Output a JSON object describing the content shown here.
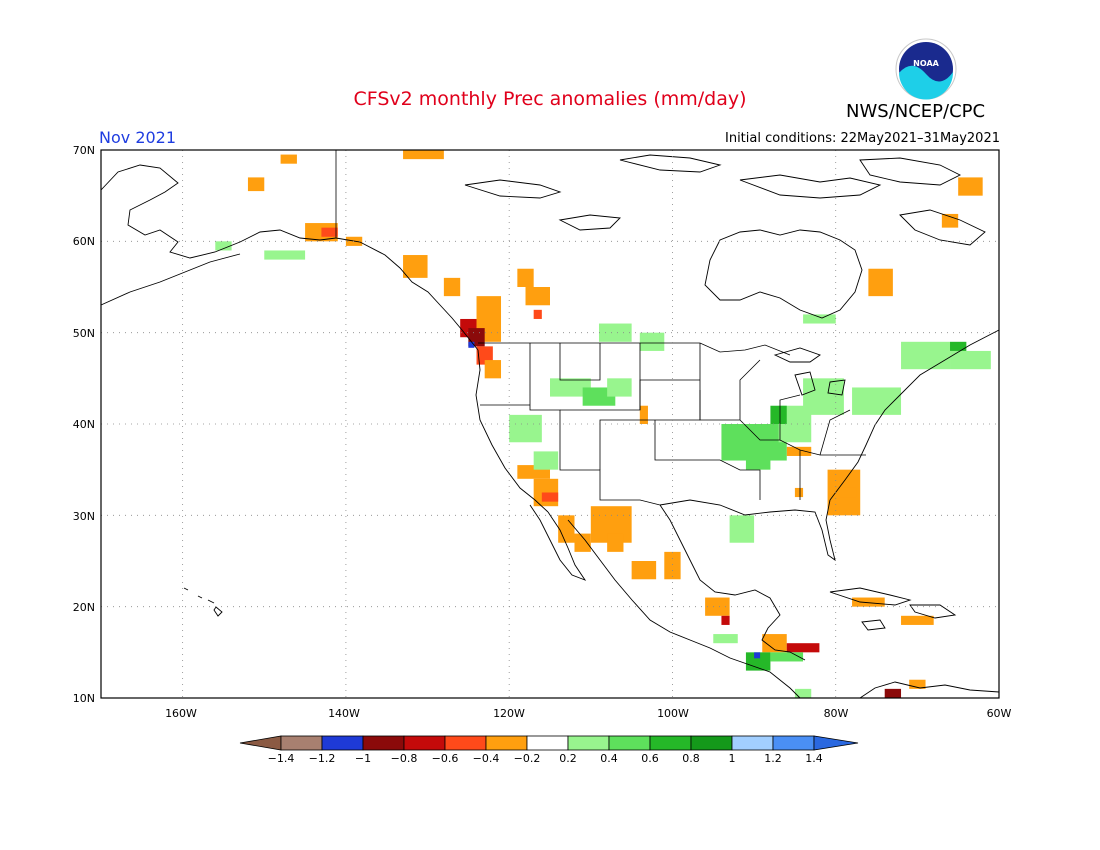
{
  "header": {
    "title": "CFSv2 monthly Prec anomalies (mm/day)",
    "org": "NWS/NCEP/CPC",
    "month": "Nov 2021",
    "initial_conditions": "Initial conditions: 22May2021–31May2021",
    "logo_text": "NOAA"
  },
  "axes": {
    "lon_labels": [
      "160W",
      "140W",
      "120W",
      "100W",
      "80W",
      "60W"
    ],
    "lat_labels": [
      "70N",
      "60N",
      "50N",
      "40N",
      "30N",
      "20N",
      "10N"
    ]
  },
  "colorbar": {
    "labels": [
      "−1.4",
      "−1.2",
      "−1",
      "−0.8",
      "−0.6",
      "−0.4",
      "−0.2",
      "0.2",
      "0.4",
      "0.6",
      "0.8",
      "1",
      "1.2",
      "1.4"
    ],
    "colors": [
      "#8b5a43",
      "#a88070",
      "#1e3ad6",
      "#8b0a0a",
      "#c40a0a",
      "#ff4a1a",
      "#ff9f0f",
      "#ffffff",
      "#98f58e",
      "#5ee05c",
      "#25b828",
      "#14991a",
      "#a2cfff",
      "#4a8ff5",
      "#2a68e0"
    ]
  },
  "palette": {
    "orange": "#ff9f0f",
    "red_orange": "#ff4a1a",
    "red": "#c40a0a",
    "dark_red": "#8b0a0a",
    "light_green": "#98f58e",
    "green": "#5ee05c",
    "dark_green": "#25b828",
    "blue": "#1e3ad6"
  }
}
